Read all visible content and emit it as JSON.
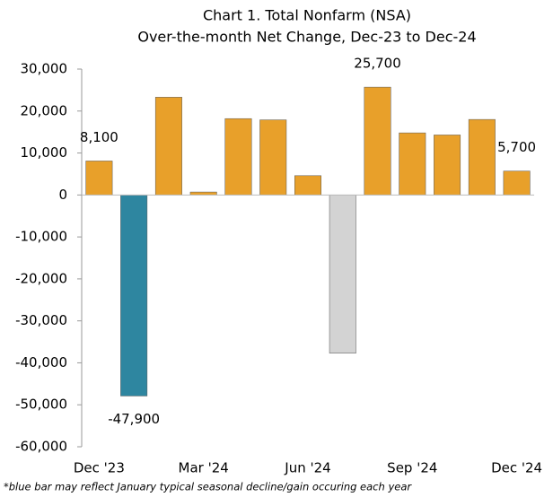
{
  "chart_data": {
    "type": "bar",
    "title": "Chart 1. Total Nonfarm (NSA)",
    "subtitle": "Over-the-month Net Change, Dec-23 to Dec-24",
    "categories": [
      "Dec '23",
      null,
      null,
      "Mar '24",
      null,
      null,
      "Jun '24",
      null,
      null,
      "Sep '24",
      null,
      null,
      "Dec '24"
    ],
    "values": [
      8100,
      -47900,
      23300,
      700,
      18200,
      17900,
      4600,
      -37700,
      25700,
      14800,
      14300,
      18000,
      5700
    ],
    "value_labels": [
      "8,100",
      "-47,900",
      null,
      null,
      null,
      null,
      null,
      null,
      "25,700",
      null,
      null,
      null,
      "5,700"
    ],
    "colors": [
      "#e8a02a",
      "#2e86a0",
      "#e8a02a",
      "#e8a02a",
      "#e8a02a",
      "#e8a02a",
      "#e8a02a",
      "#d3d3d3",
      "#e8a02a",
      "#e8a02a",
      "#e8a02a",
      "#e8a02a",
      "#e8a02a"
    ],
    "ylim": [
      -60000,
      30000
    ],
    "yticks": [
      {
        "value": -60000,
        "label": "-60,000"
      },
      {
        "value": -50000,
        "label": "-50,000"
      },
      {
        "value": -40000,
        "label": "-40,000"
      },
      {
        "value": -30000,
        "label": "-30,000"
      },
      {
        "value": -20000,
        "label": "-20,000"
      },
      {
        "value": -10000,
        "label": "-10,000"
      },
      0,
      {
        "value": 10000,
        "label": "10,000"
      },
      {
        "value": 20000,
        "label": "20,000"
      },
      {
        "value": 30000,
        "label": "30,000"
      }
    ],
    "footnote": "*blue bar may reflect January typical seasonal decline/gain occuring each year"
  }
}
